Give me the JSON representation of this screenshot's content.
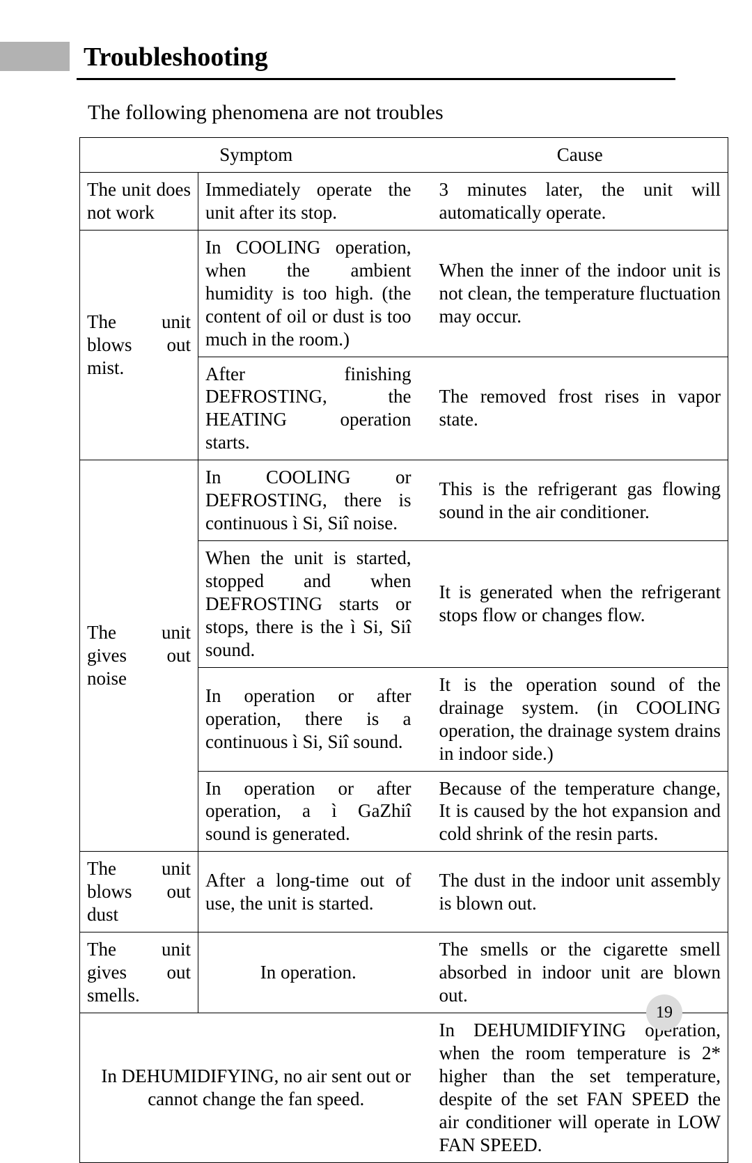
{
  "page": {
    "title": "Troubleshooting",
    "subtitle": "The following phenomena are not troubles",
    "page_number": "19",
    "colors": {
      "gray_tab": "#b2b2b2",
      "page_num_bg": "#dcdcdc",
      "rule": "#000000",
      "text": "#000000",
      "bg": "#ffffff"
    }
  },
  "table": {
    "headers": {
      "symptom": "Symptom",
      "cause": "Cause"
    },
    "rows": [
      {
        "group": "The unit does not work",
        "symptom": "Immediately operate the unit after its stop.",
        "cause": "3 minutes later, the unit will automatically operate."
      },
      {
        "group": "The unit blows out mist.",
        "symptom": "In COOLING operation, when the ambient humidity is too high. (the content of oil or dust is too much in the room.)",
        "cause": "When the inner of the indoor unit is not clean, the temperature fluctuation may occur."
      },
      {
        "symptom": "After finishing DEFROSTING, the HEATING operation starts.",
        "cause": "The removed frost rises in vapor state."
      },
      {
        "group": "The unit gives out noise",
        "symptom": "In COOLING or DEFROSTING, there is continuous ì Si, Siî  noise.",
        "cause": "This is the refrigerant gas flowing sound in the air conditioner."
      },
      {
        "symptom": "When the unit is started, stopped and when DEFROSTING starts or stops, there is the ì Si, Siî sound.",
        "cause": "It is generated when the refrigerant stops flow or changes flow."
      },
      {
        "symptom": "In operation or after operation, there is a continuous ì Si, Siî  sound.",
        "cause": "It is the operation sound of the drainage system. (in COOLING operation, the drainage system drains in indoor side.)"
      },
      {
        "symptom": "In operation or after operation, a ì GaZhiî sound is generated.",
        "cause": "Because of the temperature change, It is caused by the hot expansion and cold shrink of the resin parts."
      },
      {
        "group": "The unit blows out dust",
        "symptom": "After a long-time out of use, the unit is started.",
        "cause": "The dust in the indoor unit assembly is blown out."
      },
      {
        "group": "The unit gives out smells.",
        "symptom": "In operation.",
        "cause": "The smells or the cigarette smell absorbed in indoor unit are blown out."
      },
      {
        "symptom_wide": "In DEHUMIDIFYING, no air sent out or cannot change the fan speed.",
        "cause_wide": "In DEHUMIDIFYING operation, when the room temperature is 2* higher than the set temperature, despite of the set FAN SPEED the air conditioner will operate in LOW FAN SPEED."
      }
    ]
  }
}
